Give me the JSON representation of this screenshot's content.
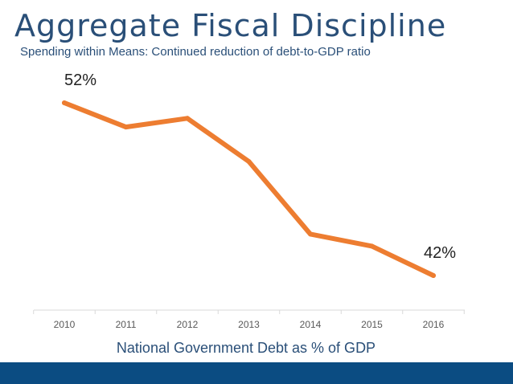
{
  "slide": {
    "title": "Aggregate Fiscal Discipline",
    "subtitle": "Spending within Means: Continued reduction of debt-to-GDP ratio"
  },
  "colors": {
    "title": "#2a4f78",
    "line": "#ed7d31",
    "axis": "#d9d9d9",
    "tick_label": "#595959",
    "xlabel": "#2a4f78",
    "footer_bar": "#0b4c82"
  },
  "chart_data": {
    "type": "line",
    "x": [
      "2010",
      "2011",
      "2012",
      "2013",
      "2014",
      "2015",
      "2016"
    ],
    "series": [
      {
        "values": [
          52,
          50.6,
          51.1,
          48.6,
          44.4,
          43.7,
          42
        ]
      }
    ],
    "data_labels": [
      {
        "index": 0,
        "text": "52%"
      },
      {
        "index": 6,
        "text": "42%"
      }
    ],
    "xlabel": "National Government Debt as % of GDP",
    "ylabel": "",
    "ylim": [
      40,
      53.3
    ],
    "grid": false,
    "legend": "none"
  }
}
